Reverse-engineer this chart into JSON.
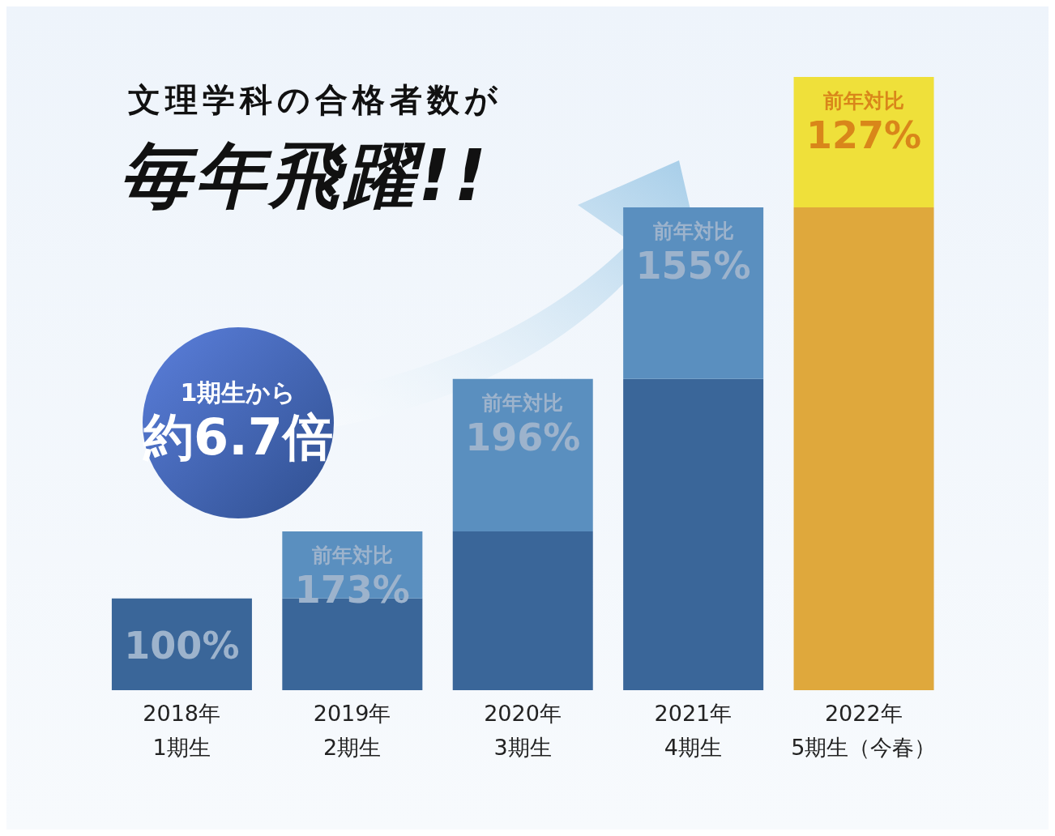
{
  "chart_data": {
    "type": "bar",
    "title": "文理学科の合格者数が",
    "subtitle": "毎年飛躍!!",
    "stacked": true,
    "ylim": [
      0,
      668
    ],
    "categories": [
      "2018年\n1期生",
      "2019年\n2期生",
      "2020年\n3期生",
      "2021年\n4期生",
      "2022年\n5期生（今春）"
    ],
    "series": [
      {
        "colors": [
          "#3a6699",
          "#3a6699",
          "#3a6699",
          "#3a6699",
          "#dfa83c"
        ],
        "values": [
          100,
          100,
          173,
          339,
          526
        ],
        "value_labels": [
          "100%",
          null,
          null,
          null,
          null
        ]
      },
      {
        "colors": [
          "#5a8fbf",
          "#5a8fbf",
          "#5a8fbf",
          "#5a8fbf",
          "#efe03a"
        ],
        "values": [
          null,
          73,
          166,
          187,
          142
        ],
        "value_labels": [
          null,
          "前年対比\n173%",
          "前年対比\n196%",
          "前年対比\n155%",
          "前年対比\n127%"
        ]
      }
    ],
    "annotations": [
      "1期生から",
      "約6.7倍"
    ]
  }
}
